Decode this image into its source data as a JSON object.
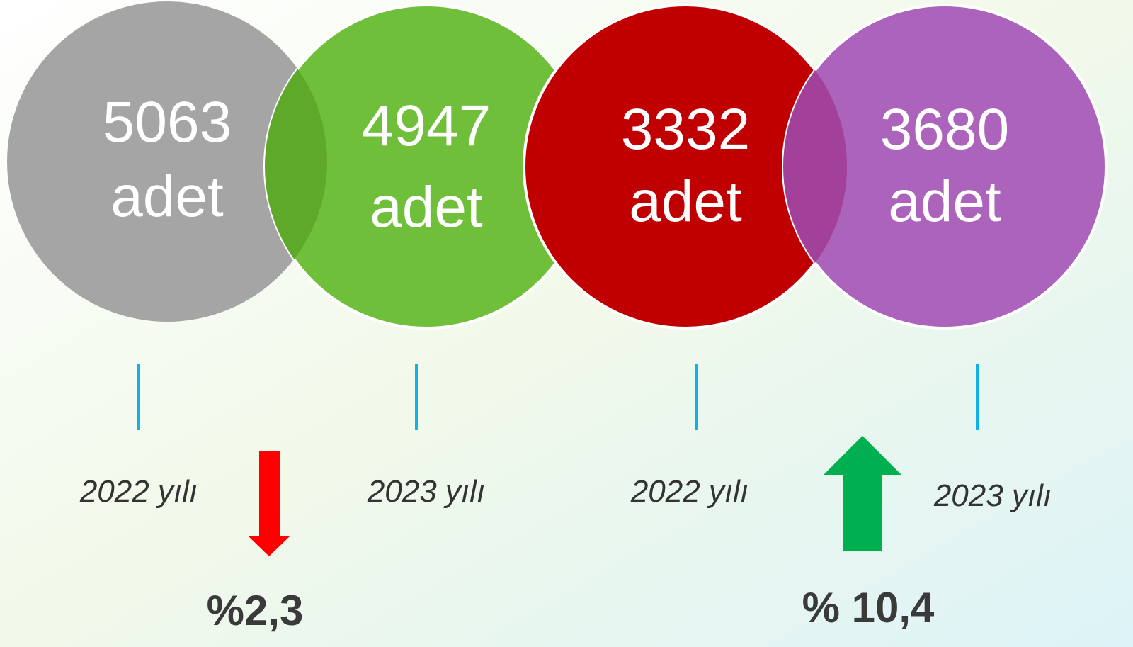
{
  "items": [
    {
      "value": "5063",
      "unit": "adet",
      "year": "2022 yılı"
    },
    {
      "value": "4947",
      "unit": "adet",
      "year": "2023 yılı"
    },
    {
      "value": "3332",
      "unit": "adet",
      "year": "2022 yılı"
    },
    {
      "value": "3680",
      "unit": "adet",
      "year": "2023 yılı"
    }
  ],
  "changes": [
    {
      "label": "%2,3"
    },
    {
      "label": "% 10,4"
    }
  ]
}
